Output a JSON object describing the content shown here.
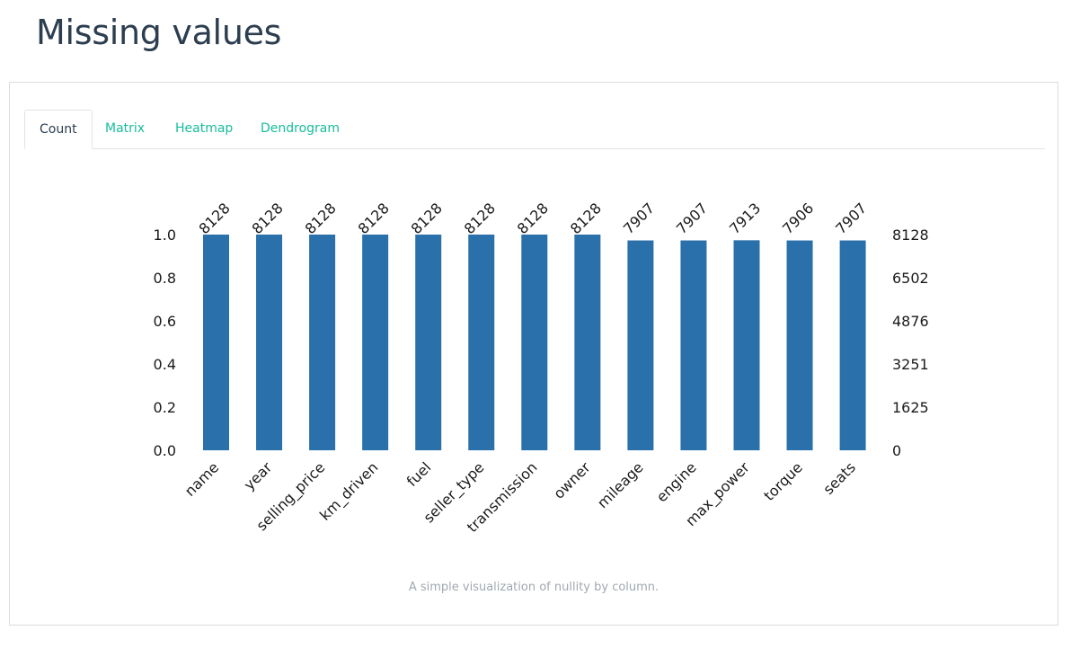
{
  "page": {
    "title": "Missing values"
  },
  "tabs": [
    {
      "label": "Count",
      "active": true
    },
    {
      "label": "Matrix",
      "active": false
    },
    {
      "label": "Heatmap",
      "active": false
    },
    {
      "label": "Dendrogram",
      "active": false
    }
  ],
  "caption": "A simple visualization of nullity by column.",
  "colors": {
    "bar": "#2a70aa",
    "tab_link": "#18bc9c",
    "title": "#2c3e50"
  },
  "chart_data": {
    "type": "bar",
    "categories": [
      "name",
      "year",
      "selling_price",
      "km_driven",
      "fuel",
      "seller_type",
      "transmission",
      "owner",
      "mileage",
      "engine",
      "max_power",
      "torque",
      "seats"
    ],
    "counts": [
      8128,
      8128,
      8128,
      8128,
      8128,
      8128,
      8128,
      8128,
      7907,
      7907,
      7913,
      7906,
      7907
    ],
    "values": [
      1.0,
      1.0,
      1.0,
      1.0,
      1.0,
      1.0,
      1.0,
      1.0,
      0.9728,
      0.9728,
      0.9735,
      0.9727,
      0.9728
    ],
    "ylim": [
      0,
      1.0
    ],
    "left_ticks": [
      "0.0",
      "0.2",
      "0.4",
      "0.6",
      "0.8",
      "1.0"
    ],
    "right_ticks": [
      "0",
      "1625",
      "3251",
      "4876",
      "6502",
      "8128"
    ],
    "grid": false,
    "legend": "none"
  }
}
